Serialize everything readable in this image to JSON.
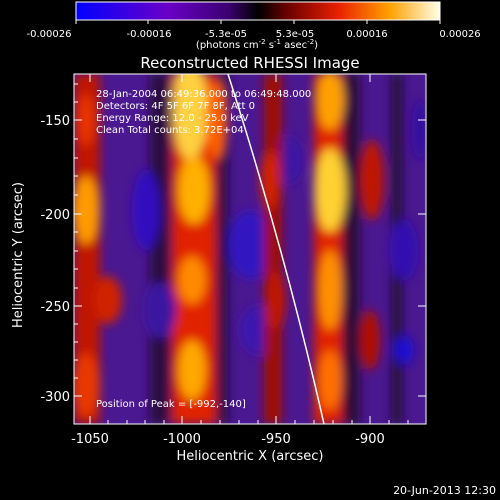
{
  "colorbar": {
    "ticks": [
      "-0.00026",
      "-0.00016",
      "-5.3e-05",
      "5.3e-05",
      "0.00016",
      "0.00026"
    ],
    "unit_prefix": "(photons cm",
    "unit_exp1": "-2",
    "unit_mid": " s",
    "unit_exp2": "-1",
    "unit_mid2": " asec",
    "unit_exp3": "-2",
    "unit_suffix": ")"
  },
  "title": "Reconstructed RHESSI Image",
  "info": {
    "line1": "28-Jan-2004 06:49:36.000 to 06:49:48.000",
    "line2": "Detectors: 4F 5F 6F 7F 8F, Att 0",
    "line3": "Energy Range: 12.0 - 25.0 keV",
    "line4": "Clean     Total counts: 3.72E+04"
  },
  "peak_label": "Position of Peak = [-992,-140]",
  "x_axis": {
    "label": "Heliocentric X (arcsec)",
    "ticks": [
      "-1050",
      "-1000",
      "-950",
      "-900"
    ]
  },
  "y_axis": {
    "label": "Heliocentric Y (arcsec)",
    "ticks": [
      "-150",
      "-200",
      "-250",
      "-300"
    ]
  },
  "timestamp": "20-Jun-2013 12:30"
}
